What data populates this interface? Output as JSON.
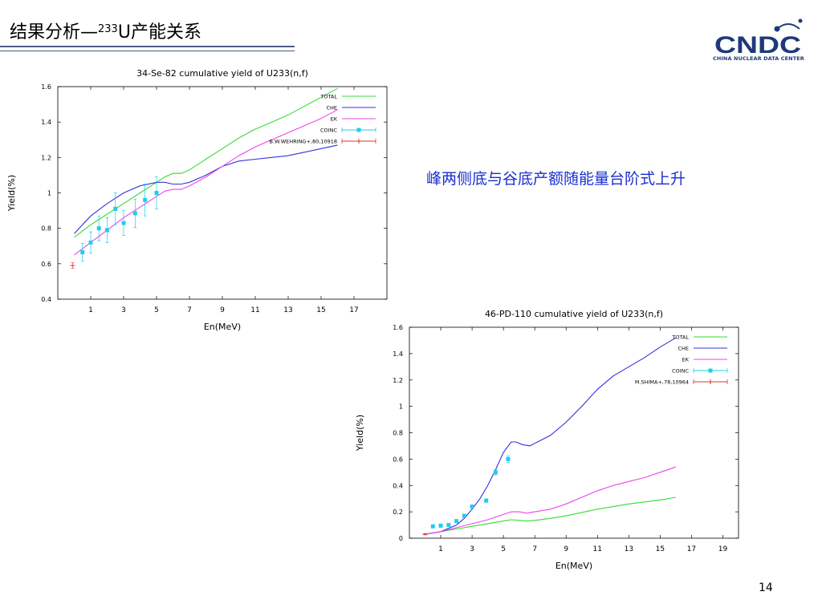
{
  "slide": {
    "title_prefix": "结果分析—",
    "title_sup": "233",
    "title_suffix": "U产能关系",
    "remark": "峰两侧底与谷底产额随能量台阶式上升",
    "page_number": "14",
    "logo": {
      "text": "CNDC",
      "subtitle": "CHINA NUCLEAR DATA CENTER",
      "color": "#1d3a7a"
    }
  },
  "chart_data": [
    {
      "type": "line",
      "title": "34-Se-82 cumulative yield of U233(n,f)",
      "xlabel": "En(MeV)",
      "ylabel": "Yield(%)",
      "xlim": [
        -1,
        19
      ],
      "ylim": [
        0.4,
        1.6
      ],
      "xticks": [
        1,
        3,
        5,
        7,
        9,
        11,
        13,
        15,
        17
      ],
      "yticks": [
        0.4,
        0.6,
        0.8,
        1,
        1.2,
        1.4,
        1.6
      ],
      "ytick_labels": [
        "0.4",
        "0.6",
        "0.8",
        "1",
        "1.2",
        "1.4",
        "1.6"
      ],
      "series": [
        {
          "name": "TOTAL",
          "color": "#33dd33",
          "x": [
            0,
            1,
            2,
            3,
            4,
            5,
            5.5,
            6,
            6.5,
            7,
            8,
            9,
            10,
            11,
            12,
            13,
            14,
            15,
            16
          ],
          "y": [
            0.75,
            0.82,
            0.88,
            0.94,
            1.0,
            1.06,
            1.09,
            1.11,
            1.11,
            1.13,
            1.19,
            1.25,
            1.31,
            1.36,
            1.4,
            1.44,
            1.49,
            1.54,
            1.59
          ]
        },
        {
          "name": "CHE",
          "color": "#3333dd",
          "x": [
            0,
            1,
            2,
            3,
            4,
            5,
            5.5,
            6,
            6.5,
            7,
            8,
            9,
            10,
            11,
            12,
            13,
            14,
            15,
            16
          ],
          "y": [
            0.77,
            0.87,
            0.94,
            1.0,
            1.04,
            1.06,
            1.06,
            1.05,
            1.05,
            1.06,
            1.1,
            1.15,
            1.18,
            1.19,
            1.2,
            1.21,
            1.23,
            1.25,
            1.27
          ]
        },
        {
          "name": "EK",
          "color": "#ee44ee",
          "x": [
            0,
            1,
            2,
            3,
            4,
            5,
            5.5,
            6,
            6.5,
            7,
            8,
            9,
            10,
            11,
            12,
            13,
            14,
            15,
            16
          ],
          "y": [
            0.65,
            0.72,
            0.79,
            0.86,
            0.92,
            0.98,
            1.01,
            1.02,
            1.02,
            1.04,
            1.09,
            1.15,
            1.21,
            1.26,
            1.3,
            1.34,
            1.38,
            1.42,
            1.47
          ]
        }
      ],
      "points": [
        {
          "name": "COINC",
          "color": "#22ccee",
          "x": [
            0.5,
            1.0,
            1.5,
            2.0,
            2.5,
            3.0,
            3.7,
            4.3,
            5.0
          ],
          "y": [
            0.665,
            0.72,
            0.8,
            0.79,
            0.91,
            0.83,
            0.885,
            0.96,
            1.0
          ],
          "err": [
            0.05,
            0.06,
            0.07,
            0.07,
            0.09,
            0.07,
            0.08,
            0.09,
            0.09
          ]
        },
        {
          "name": "B.W.WEHRING+,80,10918",
          "color": "#dd3333",
          "x": [
            -0.1
          ],
          "y": [
            0.59
          ],
          "err": [
            0.015
          ]
        }
      ]
    },
    {
      "type": "line",
      "title": "46-PD-110 cumulative yield of U233(n,f)",
      "xlabel": "En(MeV)",
      "ylabel": "Yield(%)",
      "xlim": [
        -1,
        20
      ],
      "ylim": [
        0,
        1.6
      ],
      "xticks": [
        1,
        3,
        5,
        7,
        9,
        11,
        13,
        15,
        17,
        19
      ],
      "yticks": [
        0,
        0.2,
        0.4,
        0.6,
        0.8,
        1,
        1.2,
        1.4,
        1.6
      ],
      "ytick_labels": [
        "0",
        "0.2",
        "0.4",
        "0.6",
        "0.8",
        "1",
        "1.2",
        "1.4",
        "1.6"
      ],
      "series": [
        {
          "name": "TOTAL",
          "color": "#33dd33",
          "x": [
            0,
            1,
            2,
            3,
            4,
            5,
            5.5,
            6,
            6.5,
            7,
            8,
            9,
            10,
            11,
            12,
            13,
            14,
            15,
            16
          ],
          "y": [
            0.03,
            0.05,
            0.07,
            0.09,
            0.11,
            0.13,
            0.14,
            0.135,
            0.13,
            0.135,
            0.15,
            0.17,
            0.195,
            0.22,
            0.24,
            0.26,
            0.275,
            0.29,
            0.31
          ]
        },
        {
          "name": "CHE",
          "color": "#3333dd",
          "x": [
            0,
            1,
            2,
            2.5,
            3,
            3.5,
            4,
            4.5,
            5,
            5.5,
            5.8,
            6.2,
            6.7,
            7,
            8,
            9,
            10,
            11,
            12,
            13,
            14,
            15,
            16
          ],
          "y": [
            0.03,
            0.05,
            0.1,
            0.15,
            0.22,
            0.3,
            0.4,
            0.52,
            0.65,
            0.73,
            0.73,
            0.71,
            0.7,
            0.72,
            0.78,
            0.88,
            1.0,
            1.13,
            1.23,
            1.3,
            1.37,
            1.45,
            1.52
          ]
        },
        {
          "name": "EK",
          "color": "#ee44ee",
          "x": [
            0,
            1,
            2,
            3,
            4,
            5,
            5.5,
            6,
            6.5,
            7,
            8,
            9,
            10,
            11,
            12,
            13,
            14,
            15,
            16
          ],
          "y": [
            0.03,
            0.05,
            0.08,
            0.11,
            0.14,
            0.18,
            0.2,
            0.2,
            0.19,
            0.2,
            0.22,
            0.26,
            0.31,
            0.36,
            0.4,
            0.43,
            0.46,
            0.5,
            0.54
          ]
        }
      ],
      "points": [
        {
          "name": "COINC",
          "color": "#22ccee",
          "x": [
            0.5,
            1.0,
            1.5,
            2.0,
            2.5,
            3.0,
            3.9,
            4.5,
            5.3
          ],
          "y": [
            0.09,
            0.095,
            0.1,
            0.13,
            0.17,
            0.24,
            0.285,
            0.5,
            0.6
          ],
          "err": [
            0.005,
            0.006,
            0.006,
            0.008,
            0.01,
            0.012,
            0.012,
            0.02,
            0.025
          ]
        },
        {
          "name": "M.SHIMA+,78,10964",
          "color": "#dd3333",
          "x": [
            0.0
          ],
          "y": [
            0.03
          ],
          "err": [
            0.005
          ]
        }
      ]
    }
  ]
}
